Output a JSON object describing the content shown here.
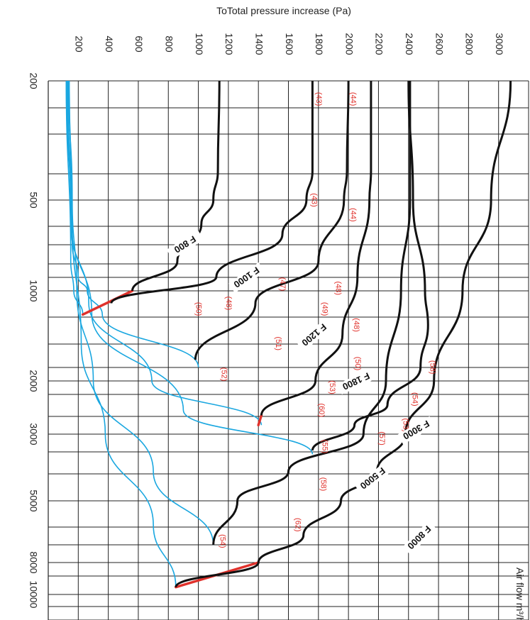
{
  "chart_data": {
    "type": "line",
    "title": "ToTotal pressure increase (Pa)",
    "xlabel": "Air flow m³/h",
    "x_ticks": [
      {
        "label": "200",
        "value": 200
      },
      {
        "label": "500",
        "value": 500
      },
      {
        "label": "1000",
        "value": 1000
      },
      {
        "label": "2000",
        "value": 2000
      },
      {
        "label": "3000",
        "value": 3000
      },
      {
        "label": "5000",
        "value": 5000
      },
      {
        "label": "8000",
        "value": 8000
      },
      {
        "label": "10000",
        "value": 10000
      }
    ],
    "y_ticks": [
      "200",
      "400",
      "600",
      "800",
      "1000",
      "1200",
      "1400",
      "1600",
      "1800",
      "2000",
      "2200",
      "2400",
      "2600",
      "2800",
      "3000"
    ],
    "ylim": [
      0,
      3200
    ],
    "grid": true,
    "series": [
      {
        "name": "F 800",
        "points": [
          [
            200,
            1140
          ],
          [
            400,
            1130
          ],
          [
            500,
            1100
          ],
          [
            600,
            1020
          ],
          [
            800,
            860
          ],
          [
            1000,
            560
          ]
        ]
      },
      {
        "name": "F 1000",
        "points": [
          [
            200,
            1760
          ],
          [
            400,
            1760
          ],
          [
            500,
            1720
          ],
          [
            650,
            1560
          ],
          [
            900,
            1120
          ],
          [
            1100,
            420
          ]
        ]
      },
      {
        "name": "F 1200",
        "points": [
          [
            200,
            2000
          ],
          [
            400,
            1990
          ],
          [
            500,
            1970
          ],
          [
            800,
            1800
          ],
          [
            1100,
            1380
          ],
          [
            1700,
            980
          ]
        ]
      },
      {
        "name": "F 1800",
        "points": [
          [
            200,
            2150
          ],
          [
            400,
            2150
          ],
          [
            500,
            2140
          ],
          [
            900,
            2060
          ],
          [
            1400,
            1960
          ],
          [
            2000,
            1780
          ],
          [
            2600,
            1420
          ]
        ]
      },
      {
        "name": "F 3000",
        "points": [
          [
            200,
            2400
          ],
          [
            500,
            2430
          ],
          [
            1000,
            2510
          ],
          [
            1300,
            2530
          ],
          [
            1800,
            2480
          ],
          [
            2400,
            2260
          ],
          [
            2800,
            2040
          ],
          [
            3400,
            1760
          ]
        ]
      },
      {
        "name": "F 5000",
        "points": [
          [
            200,
            2410
          ],
          [
            500,
            2410
          ],
          [
            1000,
            2350
          ],
          [
            2000,
            2250
          ],
          [
            3000,
            2100
          ],
          [
            4000,
            1600
          ],
          [
            5000,
            1260
          ],
          [
            7000,
            1100
          ]
        ]
      },
      {
        "name": "F 8000",
        "points": [
          [
            200,
            3080
          ],
          [
            500,
            2950
          ],
          [
            1000,
            2760
          ],
          [
            2000,
            2570
          ],
          [
            3000,
            2380
          ],
          [
            4000,
            2190
          ],
          [
            5000,
            1950
          ],
          [
            6500,
            1700
          ],
          [
            8000,
            1400
          ],
          [
            9500,
            850
          ]
        ]
      }
    ],
    "system_curves": [
      {
        "points": [
          [
            200,
            120
          ],
          [
            800,
            150
          ],
          [
            1000,
            170
          ],
          [
            1200,
            230
          ]
        ]
      },
      {
        "points": [
          [
            200,
            120
          ],
          [
            700,
            160
          ],
          [
            900,
            200
          ],
          [
            1000,
            260
          ],
          [
            1200,
            360
          ],
          [
            1800,
            1000
          ]
        ]
      },
      {
        "points": [
          [
            200,
            125
          ],
          [
            600,
            150
          ],
          [
            1100,
            270
          ],
          [
            2000,
            690
          ],
          [
            2800,
            1420
          ]
        ]
      },
      {
        "points": [
          [
            200,
            130
          ],
          [
            600,
            155
          ],
          [
            1200,
            290
          ],
          [
            2500,
            900
          ],
          [
            3500,
            1760
          ]
        ]
      },
      {
        "points": [
          [
            200,
            135
          ],
          [
            500,
            160
          ],
          [
            1000,
            190
          ],
          [
            2000,
            300
          ],
          [
            4000,
            700
          ],
          [
            7000,
            1100
          ]
        ]
      },
      {
        "points": [
          [
            200,
            140
          ],
          [
            600,
            160
          ],
          [
            1500,
            220
          ],
          [
            3000,
            380
          ],
          [
            6000,
            700
          ],
          [
            9500,
            850
          ]
        ]
      }
    ],
    "noise_labels": [
      "(43)",
      "(44)",
      "(43)",
      "(44)",
      "(47)",
      "(48)",
      "(48)",
      "(49)",
      "(50)",
      "(48)",
      "(51)",
      "(50)",
      "(52)",
      "(53)",
      "(58)",
      "(60)",
      "(54)",
      "(53)",
      "(57)",
      "(55)",
      "(58)",
      "(62)",
      "(54)"
    ]
  }
}
